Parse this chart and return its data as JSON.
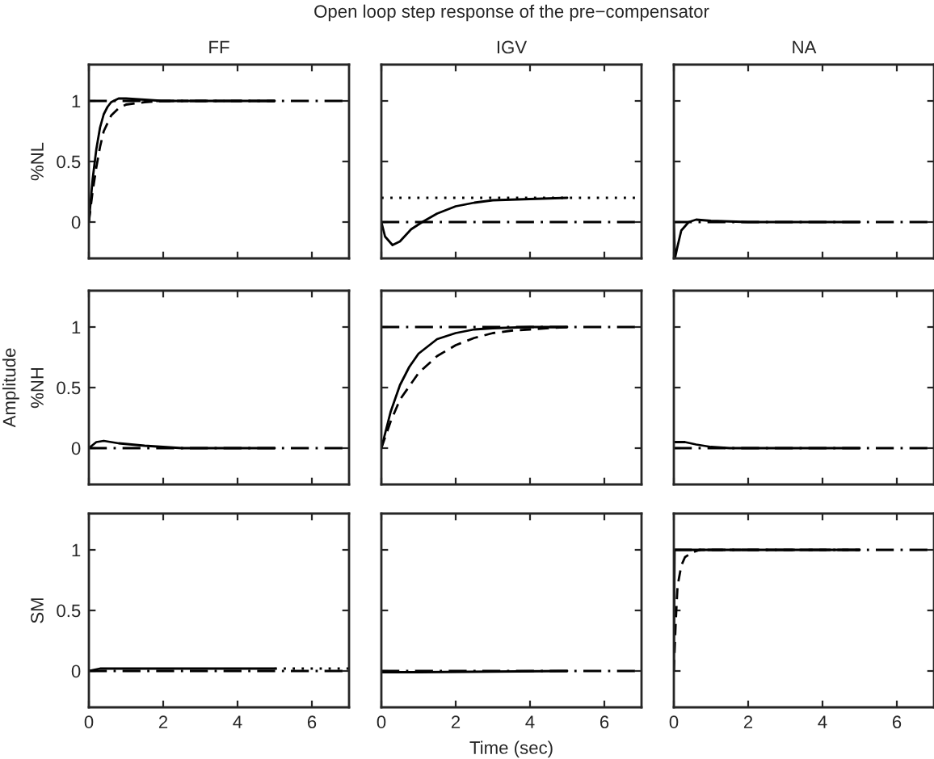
{
  "chart_data": [
    {
      "type": "line",
      "title": "FF",
      "ylabel": "%NL",
      "xlim": [
        0,
        7
      ],
      "ylim": [
        -0.3,
        1.3
      ],
      "xticks": [
        0,
        2,
        4,
        6
      ],
      "yticks": [
        0,
        0.5,
        1
      ],
      "tick_labels": "y",
      "grid": false,
      "series": [
        {
          "color": "#000000",
          "line_style": "solid",
          "x": [
            0,
            0.1,
            0.2,
            0.3,
            0.4,
            0.5,
            0.6,
            0.8,
            1,
            1.5,
            2,
            5
          ],
          "values": [
            0,
            0.35,
            0.6,
            0.78,
            0.89,
            0.95,
            0.99,
            1.02,
            1.02,
            1.01,
            1.0,
            1.0
          ]
        },
        {
          "color": "#000000",
          "line_style": "dashed",
          "x": [
            0,
            0.1,
            0.2,
            0.3,
            0.4,
            0.6,
            0.8,
            1,
            1.5,
            2,
            5
          ],
          "values": [
            0,
            0.25,
            0.45,
            0.62,
            0.75,
            0.88,
            0.94,
            0.97,
            0.99,
            1.0,
            1.0
          ]
        }
      ],
      "ref_lines": [
        {
          "axis": "y",
          "value": 1,
          "color": "#000000",
          "line_style": "dashdot"
        }
      ]
    },
    {
      "type": "line",
      "title": "IGV",
      "xlim": [
        0,
        7
      ],
      "ylim": [
        -0.3,
        1.3
      ],
      "xticks": [
        0,
        2,
        4,
        6
      ],
      "yticks": [
        0,
        0.5,
        1
      ],
      "tick_labels": false,
      "grid": false,
      "annotations": [
        "Open loop step response of the pre−compensator"
      ],
      "series": [
        {
          "color": "#000000",
          "line_style": "solid",
          "x": [
            0,
            0.1,
            0.3,
            0.5,
            0.8,
            1.1,
            1.5,
            2,
            2.5,
            3,
            4,
            5
          ],
          "values": [
            0,
            -0.12,
            -0.19,
            -0.16,
            -0.06,
            0.0,
            0.07,
            0.13,
            0.16,
            0.18,
            0.19,
            0.2
          ]
        }
      ],
      "ref_lines": [
        {
          "axis": "y",
          "value": 0.2,
          "color": "#000000",
          "line_style": "dotted"
        },
        {
          "axis": "y",
          "value": 0,
          "color": "#000000",
          "line_style": "dashdot"
        }
      ]
    },
    {
      "type": "line",
      "title": "NA",
      "xlim": [
        0,
        7
      ],
      "ylim": [
        -0.3,
        1.3
      ],
      "xticks": [
        0,
        2,
        4,
        6
      ],
      "yticks": [
        0,
        0.5,
        1
      ],
      "tick_labels": false,
      "grid": false,
      "series": [
        {
          "color": "#000000",
          "line_style": "solid",
          "x": [
            0,
            0.03,
            0.1,
            0.2,
            0.4,
            0.6,
            1,
            2,
            5
          ],
          "values": [
            0,
            -0.3,
            -0.2,
            -0.07,
            0.0,
            0.02,
            0.01,
            0,
            0
          ]
        }
      ],
      "ref_lines": [
        {
          "axis": "y",
          "value": 0,
          "color": "#000000",
          "line_style": "dashdot"
        }
      ]
    },
    {
      "type": "line",
      "ylabel": "%NH",
      "xlim": [
        0,
        7
      ],
      "ylim": [
        -0.3,
        1.3
      ],
      "xticks": [
        0,
        2,
        4,
        6
      ],
      "yticks": [
        0,
        0.5,
        1
      ],
      "tick_labels": "y",
      "grid": false,
      "annotations": [
        "Amplitude"
      ],
      "series": [
        {
          "color": "#000000",
          "line_style": "solid",
          "x": [
            0,
            0.2,
            0.4,
            0.8,
            1.5,
            2.5,
            5
          ],
          "values": [
            0,
            0.05,
            0.06,
            0.04,
            0.02,
            0.0,
            0
          ]
        }
      ],
      "ref_lines": [
        {
          "axis": "y",
          "value": 0,
          "color": "#000000",
          "line_style": "dashdot"
        }
      ]
    },
    {
      "type": "line",
      "xlim": [
        0,
        7
      ],
      "ylim": [
        -0.3,
        1.3
      ],
      "xticks": [
        0,
        2,
        4,
        6
      ],
      "yticks": [
        0,
        0.5,
        1
      ],
      "tick_labels": false,
      "grid": false,
      "series": [
        {
          "color": "#000000",
          "line_style": "solid",
          "x": [
            0,
            0.25,
            0.5,
            0.75,
            1,
            1.5,
            2,
            2.5,
            3,
            4,
            5
          ],
          "values": [
            0,
            0.3,
            0.52,
            0.67,
            0.78,
            0.9,
            0.95,
            0.98,
            0.99,
            1.0,
            1.0
          ]
        },
        {
          "color": "#000000",
          "line_style": "dashed",
          "x": [
            0,
            0.25,
            0.5,
            1,
            1.5,
            2,
            2.5,
            3,
            3.5,
            4,
            5
          ],
          "values": [
            0,
            0.22,
            0.4,
            0.62,
            0.76,
            0.85,
            0.91,
            0.95,
            0.97,
            0.98,
            1.0
          ]
        }
      ],
      "ref_lines": [
        {
          "axis": "y",
          "value": 1,
          "color": "#000000",
          "line_style": "dashdot"
        }
      ]
    },
    {
      "type": "line",
      "xlim": [
        0,
        7
      ],
      "ylim": [
        -0.3,
        1.3
      ],
      "xticks": [
        0,
        2,
        4,
        6
      ],
      "yticks": [
        0,
        0.5,
        1
      ],
      "tick_labels": false,
      "grid": false,
      "series": [
        {
          "color": "#000000",
          "line_style": "solid",
          "x": [
            0,
            0.3,
            0.6,
            1,
            1.5,
            5
          ],
          "values": [
            0.05,
            0.05,
            0.03,
            0.01,
            0.0,
            0
          ]
        }
      ],
      "ref_lines": [
        {
          "axis": "y",
          "value": 0,
          "color": "#000000",
          "line_style": "dashdot"
        }
      ]
    },
    {
      "type": "line",
      "ylabel": "SM",
      "xlim": [
        0,
        7
      ],
      "ylim": [
        -0.3,
        1.3
      ],
      "xticks": [
        0,
        2,
        4,
        6
      ],
      "yticks": [
        0,
        0.5,
        1
      ],
      "grid": false,
      "series": [
        {
          "color": "#000000",
          "line_style": "solid",
          "x": [
            0,
            0.3,
            5
          ],
          "values": [
            0,
            0.02,
            0.02
          ]
        },
        {
          "color": "#000000",
          "line_style": "dotted",
          "x": [
            5,
            7
          ],
          "values": [
            0.02,
            0.02
          ]
        }
      ],
      "ref_lines": [
        {
          "axis": "y",
          "value": 0,
          "color": "#000000",
          "line_style": "dashdot"
        }
      ]
    },
    {
      "type": "line",
      "xlabel": "Time (sec)",
      "xlim": [
        0,
        7
      ],
      "ylim": [
        -0.3,
        1.3
      ],
      "xticks": [
        0,
        2,
        4,
        6
      ],
      "yticks": [
        0,
        0.5,
        1
      ],
      "tick_labels": "x",
      "grid": false,
      "series": [
        {
          "color": "#000000",
          "line_style": "solid",
          "x": [
            0,
            1,
            5
          ],
          "values": [
            -0.01,
            -0.01,
            0
          ]
        }
      ],
      "ref_lines": [
        {
          "axis": "y",
          "value": 0,
          "color": "#000000",
          "line_style": "dashdot"
        }
      ]
    },
    {
      "type": "line",
      "xlim": [
        0,
        7
      ],
      "ylim": [
        -0.3,
        1.3
      ],
      "xticks": [
        0,
        2,
        4,
        6
      ],
      "yticks": [
        0,
        0.5,
        1
      ],
      "tick_labels": "x",
      "grid": false,
      "series": [
        {
          "color": "#000000",
          "line_style": "solid",
          "x": [
            0,
            0.02,
            5
          ],
          "values": [
            0,
            1.0,
            1.0
          ]
        },
        {
          "color": "#000000",
          "line_style": "dashed",
          "x": [
            0,
            0.05,
            0.1,
            0.2,
            0.3,
            0.5,
            0.7,
            5
          ],
          "values": [
            0,
            0.4,
            0.7,
            0.87,
            0.94,
            0.98,
            1.0,
            1.0
          ]
        }
      ],
      "ref_lines": [
        {
          "axis": "y",
          "value": 1,
          "color": "#000000",
          "line_style": "dashdot"
        }
      ]
    }
  ]
}
